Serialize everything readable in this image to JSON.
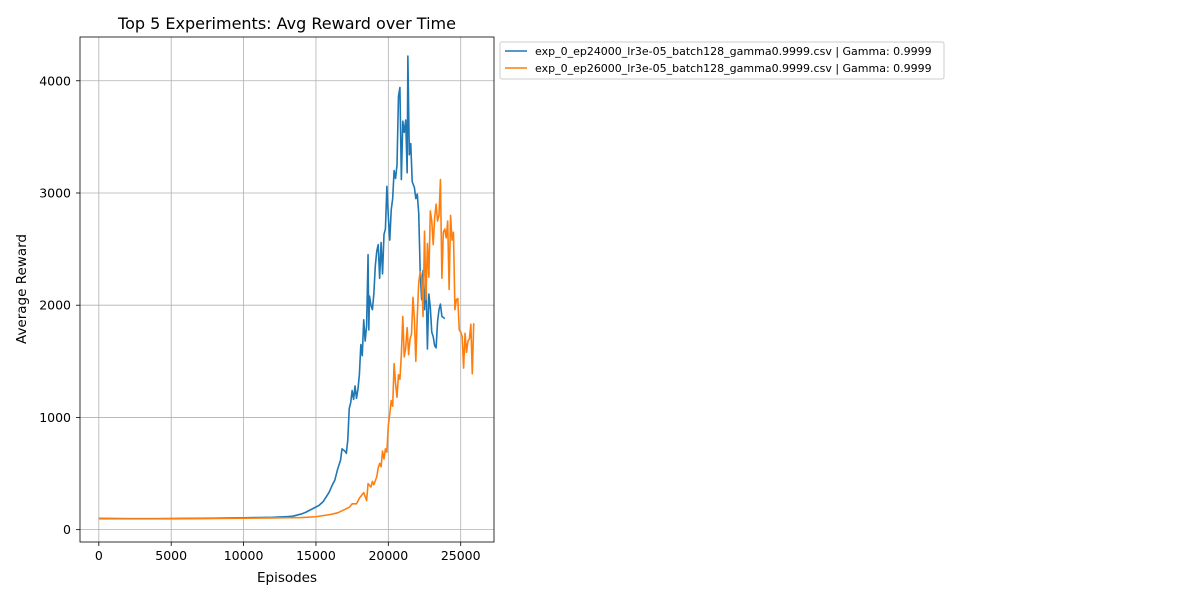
{
  "chart_data": {
    "type": "line",
    "title": "Top 5 Experiments: Avg Reward over Time",
    "xlabel": "Episodes",
    "ylabel": "Average Reward",
    "xlim": [
      -1300,
      27300
    ],
    "ylim": [
      -110,
      4390
    ],
    "xticks": [
      0,
      5000,
      10000,
      15000,
      20000,
      25000
    ],
    "yticks": [
      0,
      1000,
      2000,
      3000,
      4000
    ],
    "grid": true,
    "legend_position": "outside-top-right",
    "series": [
      {
        "name": "exp_0_ep24000_lr3e-05_batch128_gamma0.9999.csv | Gamma: 0.9999",
        "color": "#1f77b4",
        "points": [
          [
            0,
            100
          ],
          [
            1000,
            99
          ],
          [
            2000,
            98
          ],
          [
            3000,
            98
          ],
          [
            4000,
            98
          ],
          [
            5000,
            99
          ],
          [
            6000,
            100
          ],
          [
            7000,
            101
          ],
          [
            8000,
            102
          ],
          [
            9000,
            104
          ],
          [
            10000,
            106
          ],
          [
            11000,
            108
          ],
          [
            12000,
            110
          ],
          [
            12600,
            113
          ],
          [
            13000,
            116
          ],
          [
            13400,
            120
          ],
          [
            13700,
            130
          ],
          [
            14000,
            140
          ],
          [
            14300,
            155
          ],
          [
            14600,
            175
          ],
          [
            14900,
            195
          ],
          [
            15200,
            215
          ],
          [
            15500,
            250
          ],
          [
            15700,
            290
          ],
          [
            15900,
            330
          ],
          [
            16100,
            390
          ],
          [
            16300,
            440
          ],
          [
            16500,
            540
          ],
          [
            16700,
            620
          ],
          [
            16800,
            720
          ],
          [
            17000,
            700
          ],
          [
            17100,
            680
          ],
          [
            17200,
            800
          ],
          [
            17300,
            1080
          ],
          [
            17400,
            1130
          ],
          [
            17500,
            1240
          ],
          [
            17600,
            1160
          ],
          [
            17700,
            1280
          ],
          [
            17800,
            1170
          ],
          [
            17900,
            1250
          ],
          [
            18000,
            1380
          ],
          [
            18100,
            1650
          ],
          [
            18200,
            1550
          ],
          [
            18300,
            1870
          ],
          [
            18400,
            1680
          ],
          [
            18500,
            1820
          ],
          [
            18600,
            2450
          ],
          [
            18650,
            1780
          ],
          [
            18700,
            2080
          ],
          [
            18800,
            2000
          ],
          [
            18900,
            1960
          ],
          [
            19000,
            2100
          ],
          [
            19100,
            2350
          ],
          [
            19200,
            2480
          ],
          [
            19300,
            2540
          ],
          [
            19400,
            2240
          ],
          [
            19500,
            2560
          ],
          [
            19600,
            2280
          ],
          [
            19700,
            2630
          ],
          [
            19800,
            2680
          ],
          [
            19900,
            3060
          ],
          [
            20000,
            2790
          ],
          [
            20100,
            2580
          ],
          [
            20200,
            2850
          ],
          [
            20300,
            2950
          ],
          [
            20400,
            3200
          ],
          [
            20500,
            3130
          ],
          [
            20600,
            3250
          ],
          [
            20700,
            3860
          ],
          [
            20800,
            3940
          ],
          [
            20900,
            3120
          ],
          [
            21000,
            3640
          ],
          [
            21100,
            3540
          ],
          [
            21200,
            3650
          ],
          [
            21300,
            3180
          ],
          [
            21350,
            4220
          ],
          [
            21450,
            3340
          ],
          [
            21550,
            3440
          ],
          [
            21650,
            3100
          ],
          [
            21800,
            3050
          ],
          [
            21900,
            2950
          ],
          [
            22000,
            2990
          ],
          [
            22100,
            2820
          ],
          [
            22200,
            2300
          ],
          [
            22300,
            2050
          ],
          [
            22400,
            2310
          ],
          [
            22500,
            1960
          ],
          [
            22600,
            2250
          ],
          [
            22700,
            1610
          ],
          [
            22800,
            2100
          ],
          [
            22900,
            1980
          ],
          [
            23000,
            1760
          ],
          [
            23100,
            1720
          ],
          [
            23200,
            1640
          ],
          [
            23300,
            1620
          ],
          [
            23400,
            1850
          ],
          [
            23500,
            1960
          ],
          [
            23600,
            2010
          ],
          [
            23700,
            1900
          ],
          [
            23900,
            1880
          ]
        ]
      },
      {
        "name": "exp_0_ep26000_lr3e-05_batch128_gamma0.9999.csv | Gamma: 0.9999",
        "color": "#ff7f0e",
        "points": [
          [
            0,
            97
          ],
          [
            1000,
            96
          ],
          [
            2000,
            96
          ],
          [
            3000,
            96
          ],
          [
            4000,
            96
          ],
          [
            5000,
            97
          ],
          [
            6000,
            98
          ],
          [
            7000,
            99
          ],
          [
            8000,
            100
          ],
          [
            9000,
            101
          ],
          [
            10000,
            102
          ],
          [
            11000,
            103
          ],
          [
            12000,
            104
          ],
          [
            13000,
            106
          ],
          [
            14000,
            108
          ],
          [
            15000,
            115
          ],
          [
            15500,
            125
          ],
          [
            16000,
            135
          ],
          [
            16500,
            150
          ],
          [
            17000,
            180
          ],
          [
            17300,
            200
          ],
          [
            17500,
            230
          ],
          [
            17800,
            230
          ],
          [
            18000,
            280
          ],
          [
            18300,
            330
          ],
          [
            18500,
            260
          ],
          [
            18600,
            410
          ],
          [
            18800,
            380
          ],
          [
            18900,
            430
          ],
          [
            19000,
            400
          ],
          [
            19200,
            470
          ],
          [
            19300,
            550
          ],
          [
            19400,
            590
          ],
          [
            19500,
            560
          ],
          [
            19600,
            700
          ],
          [
            19700,
            630
          ],
          [
            19800,
            720
          ],
          [
            19900,
            690
          ],
          [
            20000,
            930
          ],
          [
            20100,
            1030
          ],
          [
            20200,
            1150
          ],
          [
            20300,
            1100
          ],
          [
            20400,
            1480
          ],
          [
            20500,
            1300
          ],
          [
            20600,
            1180
          ],
          [
            20700,
            1380
          ],
          [
            20800,
            1340
          ],
          [
            20900,
            1560
          ],
          [
            21000,
            1900
          ],
          [
            21100,
            1540
          ],
          [
            21200,
            1620
          ],
          [
            21300,
            1800
          ],
          [
            21400,
            1560
          ],
          [
            21500,
            1700
          ],
          [
            21600,
            1740
          ],
          [
            21700,
            2070
          ],
          [
            21800,
            1880
          ],
          [
            21900,
            1500
          ],
          [
            22000,
            1900
          ],
          [
            22100,
            2200
          ],
          [
            22200,
            2300
          ],
          [
            22300,
            2250
          ],
          [
            22400,
            1900
          ],
          [
            22500,
            2660
          ],
          [
            22600,
            2050
          ],
          [
            22700,
            2550
          ],
          [
            22800,
            2250
          ],
          [
            22900,
            2840
          ],
          [
            23000,
            2750
          ],
          [
            23100,
            2540
          ],
          [
            23200,
            2780
          ],
          [
            23300,
            2900
          ],
          [
            23400,
            2750
          ],
          [
            23500,
            2800
          ],
          [
            23600,
            3120
          ],
          [
            23700,
            2240
          ],
          [
            23800,
            2650
          ],
          [
            23900,
            2680
          ],
          [
            24000,
            2600
          ],
          [
            24100,
            2750
          ],
          [
            24200,
            2140
          ],
          [
            24300,
            2800
          ],
          [
            24400,
            2580
          ],
          [
            24500,
            2650
          ],
          [
            24600,
            1960
          ],
          [
            24700,
            2050
          ],
          [
            24800,
            2060
          ],
          [
            24900,
            1780
          ],
          [
            25000,
            1760
          ],
          [
            25100,
            1720
          ],
          [
            25200,
            1440
          ],
          [
            25300,
            1750
          ],
          [
            25400,
            1580
          ],
          [
            25500,
            1680
          ],
          [
            25600,
            1700
          ],
          [
            25700,
            1830
          ],
          [
            25800,
            1390
          ],
          [
            25900,
            1840
          ]
        ]
      }
    ]
  }
}
